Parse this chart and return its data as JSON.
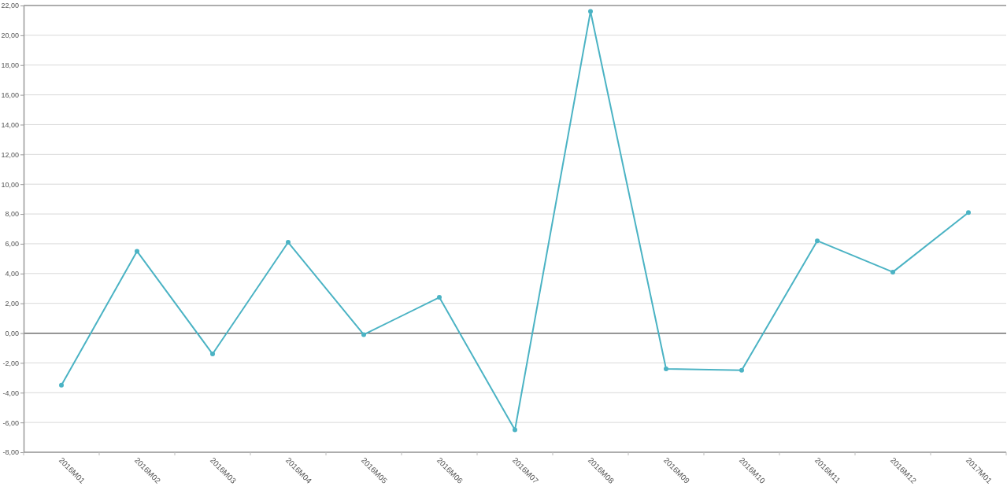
{
  "chart_data": {
    "type": "line",
    "categories": [
      "2016M01",
      "2016M02",
      "2016M03",
      "2016M04",
      "2016M05",
      "2016M06",
      "2016M07",
      "2016M08",
      "2016M09",
      "2016M10",
      "2016M11",
      "2016M12",
      "2017M01"
    ],
    "series": [
      {
        "color": "#4bb3c4",
        "values": [
          -3.5,
          5.5,
          -1.4,
          6.1,
          -0.1,
          2.4,
          -6.5,
          21.6,
          -2.4,
          -2.5,
          6.2,
          4.1,
          8.1
        ]
      }
    ],
    "ylim": [
      -8,
      22
    ],
    "yticks": [
      {
        "value": -8,
        "label": "-8,00"
      },
      {
        "value": -6,
        "label": "-6,00"
      },
      {
        "value": -4,
        "label": "-4,00"
      },
      {
        "value": -2,
        "label": "-2,00"
      },
      {
        "value": 0,
        "label": "0,00"
      },
      {
        "value": 2,
        "label": "2,00"
      },
      {
        "value": 4,
        "label": "4,00"
      },
      {
        "value": 6,
        "label": "6,00"
      },
      {
        "value": 8,
        "label": "8,00"
      },
      {
        "value": 10,
        "label": "10,00"
      },
      {
        "value": 12,
        "label": "12,00"
      },
      {
        "value": 14,
        "label": "14,00"
      },
      {
        "value": 16,
        "label": "16,00"
      },
      {
        "value": 18,
        "label": "18,00"
      },
      {
        "value": 20,
        "label": "20,00"
      },
      {
        "value": 22,
        "label": "22,00"
      }
    ],
    "ref_lines": [
      {
        "axis": "y",
        "value": 0,
        "color": "#555555"
      }
    ],
    "grid": "y",
    "marker": "circle",
    "line_style": "solid"
  }
}
